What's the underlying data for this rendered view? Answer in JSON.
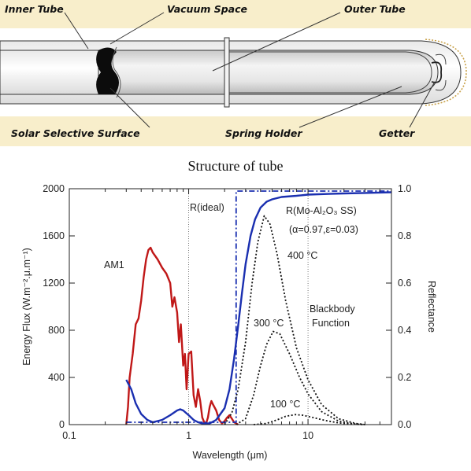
{
  "tube": {
    "labels": {
      "inner_tube": "Inner Tube",
      "vacuum_space": "Vacuum Space",
      "outer_tube": "Outer Tube",
      "solar_selective_surface": "Solar Selective Surface",
      "spring_holder": "Spring Holder",
      "getter": "Getter"
    },
    "band_color": "#f8eecb"
  },
  "caption": "Structure of tube",
  "chart_data": {
    "type": "line",
    "xscale": "log",
    "xlim": [
      0.1,
      50
    ],
    "x_ticks": [
      0.1,
      1,
      10
    ],
    "x_tick_labels": [
      "0.1",
      "1",
      "10"
    ],
    "xlabel": "Wavelength (μm)",
    "y_left": {
      "label": "Energy Flux (W.m⁻².μ.m⁻¹)",
      "lim": [
        0,
        2000
      ],
      "ticks": [
        "0",
        "400",
        "800",
        "1200",
        "1600",
        "2000"
      ]
    },
    "y_right": {
      "label": "Reflectance",
      "lim": [
        0,
        1.0
      ],
      "ticks": [
        "0.0",
        "0.2",
        "0.4",
        "0.6",
        "0.8",
        "1.0"
      ]
    },
    "annotations": {
      "am1": "AM1",
      "r_ideal": "R(ideal)",
      "r_mo": "R(Mo-Al₂O₃ SS)",
      "params": "(α=0.97,ε=0.03)",
      "t400": "400 °C",
      "t300": "300 °C",
      "t100": "100 °C",
      "blackbody1": "Blackbody",
      "blackbody2": "Function"
    },
    "series": [
      {
        "name": "AM1",
        "axis": "left",
        "color": "#c01818",
        "style": "solid",
        "points": [
          [
            0.3,
            0
          ],
          [
            0.31,
            150
          ],
          [
            0.32,
            400
          ],
          [
            0.34,
            600
          ],
          [
            0.36,
            850
          ],
          [
            0.38,
            900
          ],
          [
            0.4,
            1050
          ],
          [
            0.42,
            1250
          ],
          [
            0.44,
            1400
          ],
          [
            0.46,
            1480
          ],
          [
            0.48,
            1500
          ],
          [
            0.5,
            1460
          ],
          [
            0.55,
            1400
          ],
          [
            0.6,
            1330
          ],
          [
            0.65,
            1280
          ],
          [
            0.7,
            1200
          ],
          [
            0.73,
            1000
          ],
          [
            0.76,
            1080
          ],
          [
            0.8,
            950
          ],
          [
            0.83,
            700
          ],
          [
            0.86,
            850
          ],
          [
            0.9,
            500
          ],
          [
            0.93,
            600
          ],
          [
            0.96,
            300
          ],
          [
            1.0,
            600
          ],
          [
            1.05,
            620
          ],
          [
            1.1,
            250
          ],
          [
            1.15,
            150
          ],
          [
            1.2,
            300
          ],
          [
            1.25,
            200
          ],
          [
            1.3,
            60
          ],
          [
            1.35,
            20
          ],
          [
            1.4,
            10
          ],
          [
            1.45,
            60
          ],
          [
            1.5,
            150
          ],
          [
            1.55,
            200
          ],
          [
            1.6,
            170
          ],
          [
            1.7,
            120
          ],
          [
            1.8,
            40
          ],
          [
            1.9,
            10
          ],
          [
            2.0,
            30
          ],
          [
            2.1,
            60
          ],
          [
            2.2,
            80
          ],
          [
            2.3,
            50
          ],
          [
            2.4,
            20
          ],
          [
            2.5,
            10
          ],
          [
            2.6,
            0
          ]
        ]
      },
      {
        "name": "R(Mo-Al₂O₃ SS)",
        "axis": "right",
        "color": "#1a2fb0",
        "style": "solid",
        "points": [
          [
            0.3,
            0.19
          ],
          [
            0.33,
            0.15
          ],
          [
            0.36,
            0.09
          ],
          [
            0.4,
            0.045
          ],
          [
            0.45,
            0.02
          ],
          [
            0.5,
            0.01
          ],
          [
            0.6,
            0.02
          ],
          [
            0.7,
            0.04
          ],
          [
            0.8,
            0.06
          ],
          [
            0.85,
            0.065
          ],
          [
            0.9,
            0.06
          ],
          [
            1.0,
            0.04
          ],
          [
            1.1,
            0.02
          ],
          [
            1.2,
            0.01
          ],
          [
            1.3,
            0.005
          ],
          [
            1.5,
            0.005
          ],
          [
            1.7,
            0.02
          ],
          [
            2.0,
            0.07
          ],
          [
            2.2,
            0.15
          ],
          [
            2.4,
            0.28
          ],
          [
            2.6,
            0.42
          ],
          [
            2.8,
            0.56
          ],
          [
            3.0,
            0.68
          ],
          [
            3.3,
            0.8
          ],
          [
            3.6,
            0.87
          ],
          [
            4.0,
            0.92
          ],
          [
            4.5,
            0.945
          ],
          [
            5,
            0.955
          ],
          [
            6,
            0.965
          ],
          [
            8,
            0.97
          ],
          [
            10,
            0.975
          ],
          [
            15,
            0.978
          ],
          [
            20,
            0.98
          ],
          [
            30,
            0.982
          ],
          [
            50,
            0.985
          ]
        ]
      },
      {
        "name": "R(ideal)",
        "axis": "right",
        "color": "#1a2fb0",
        "style": "dashdot",
        "points": [
          [
            0.3,
            0.01
          ],
          [
            2.5,
            0.01
          ],
          [
            2.5,
            0.99
          ],
          [
            50,
            0.99
          ]
        ]
      },
      {
        "name": "400 °C",
        "axis": "left",
        "color": "#111111",
        "style": "dotted",
        "points": [
          [
            2.0,
            0
          ],
          [
            2.3,
            100
          ],
          [
            2.6,
            300
          ],
          [
            3.0,
            700
          ],
          [
            3.4,
            1200
          ],
          [
            3.8,
            1550
          ],
          [
            4.3,
            1770
          ],
          [
            4.8,
            1700
          ],
          [
            5.5,
            1450
          ],
          [
            6.5,
            1050
          ],
          [
            8,
            650
          ],
          [
            10,
            380
          ],
          [
            13,
            170
          ],
          [
            18,
            50
          ],
          [
            25,
            10
          ],
          [
            30,
            0
          ]
        ]
      },
      {
        "name": "300 °C",
        "axis": "left",
        "color": "#111111",
        "style": "dotted",
        "points": [
          [
            2.5,
            0
          ],
          [
            3.0,
            50
          ],
          [
            3.5,
            250
          ],
          [
            4.0,
            500
          ],
          [
            4.5,
            680
          ],
          [
            5.1,
            790
          ],
          [
            5.8,
            770
          ],
          [
            7,
            600
          ],
          [
            8.5,
            400
          ],
          [
            10,
            260
          ],
          [
            13,
            110
          ],
          [
            18,
            30
          ],
          [
            25,
            5
          ],
          [
            30,
            0
          ]
        ]
      },
      {
        "name": "100 °C",
        "axis": "left",
        "color": "#111111",
        "style": "dotted",
        "points": [
          [
            3.5,
            0
          ],
          [
            4.5,
            10
          ],
          [
            5.5,
            40
          ],
          [
            6.5,
            70
          ],
          [
            7.8,
            85
          ],
          [
            9,
            80
          ],
          [
            11,
            60
          ],
          [
            14,
            35
          ],
          [
            18,
            15
          ],
          [
            25,
            3
          ],
          [
            30,
            0
          ]
        ]
      }
    ]
  }
}
